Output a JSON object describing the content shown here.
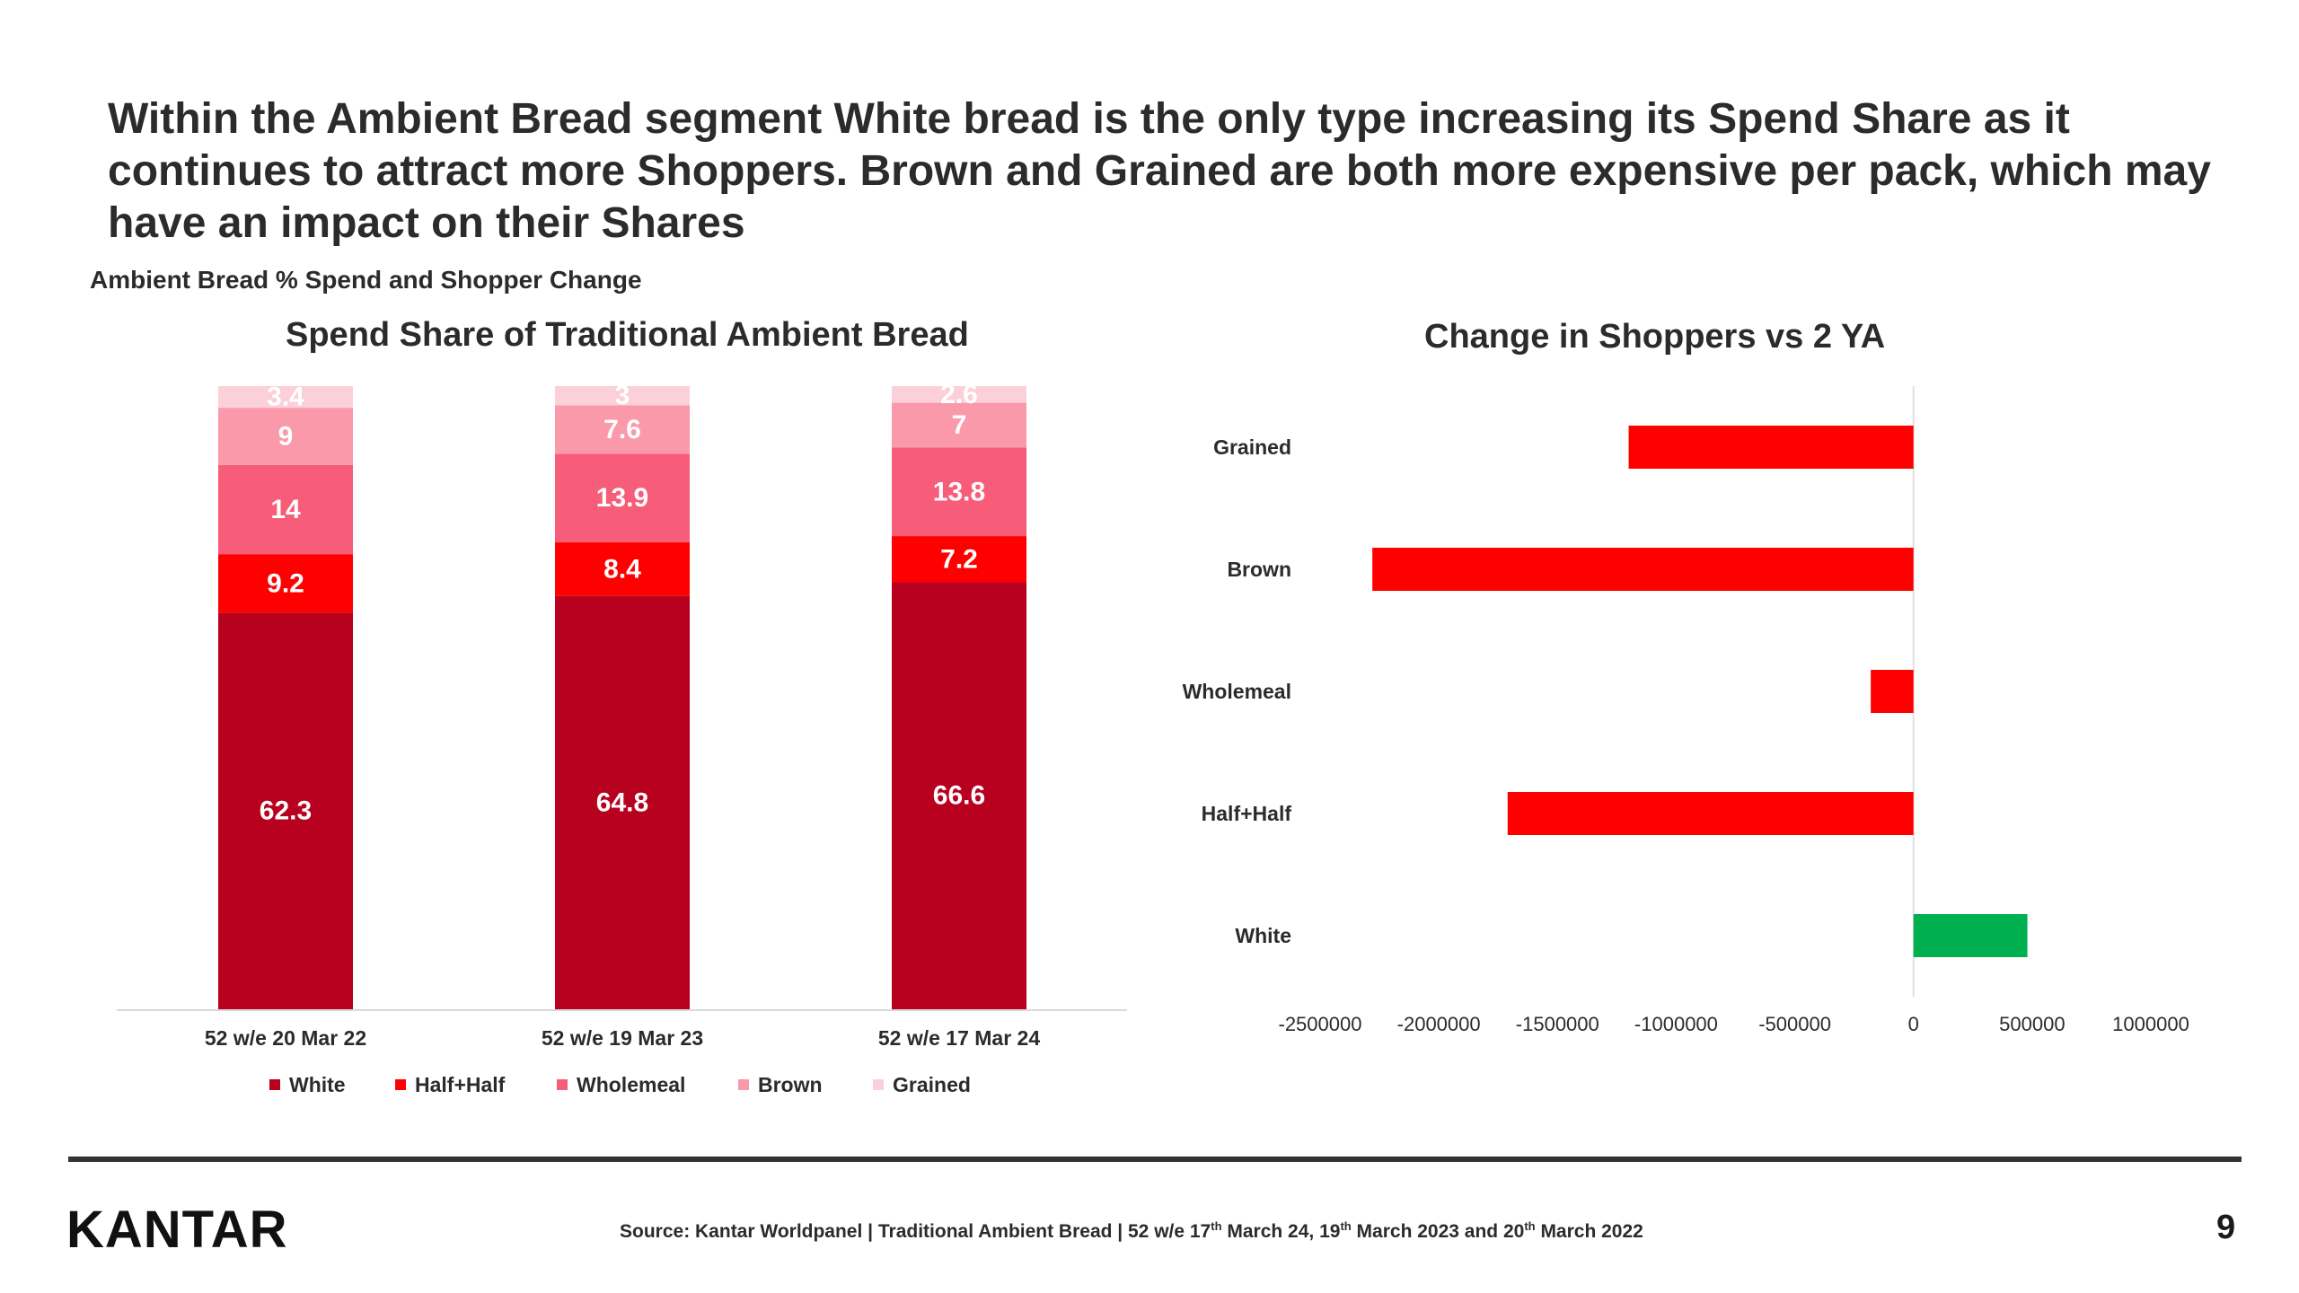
{
  "headline": "Within the Ambient Bread segment White bread is the only type increasing its Spend Share as it continues to attract more Shoppers. Brown and Grained are both more expensive per pack, which may have an impact on their Shares",
  "subtitle": "Ambient Bread % Spend and Shopper Change",
  "chart_data": [
    {
      "type": "bar",
      "stacked": true,
      "orientation": "vertical",
      "title": "Spend Share of Traditional Ambient Bread",
      "xlabel": "",
      "ylabel": "",
      "categories": [
        "52 w/e 20 Mar 22",
        "52 w/e 19 Mar 23",
        "52 w/e 17 Mar 24"
      ],
      "series": [
        {
          "name": "White",
          "values": [
            62.3,
            64.8,
            66.6
          ],
          "color": "#b8001f"
        },
        {
          "name": "Half+Half",
          "values": [
            9.2,
            8.4,
            7.2
          ],
          "color": "#ff0000"
        },
        {
          "name": "Wholemeal",
          "values": [
            14,
            13.9,
            13.8
          ],
          "color": "#f75c78"
        },
        {
          "name": "Brown",
          "values": [
            9,
            7.6,
            7
          ],
          "color": "#fa99aa"
        },
        {
          "name": "Grained",
          "values": [
            3.4,
            3,
            2.6
          ],
          "color": "#fcd0d8"
        }
      ],
      "data_labels": true,
      "legend": "bottom",
      "grid": false
    },
    {
      "type": "bar",
      "orientation": "horizontal",
      "title": "Change in Shoppers vs 2 YA",
      "xlabel": "",
      "ylabel": "",
      "categories": [
        "Grained",
        "Brown",
        "Wholemeal",
        "Half+Half",
        "White"
      ],
      "values": [
        -1200000,
        -2280000,
        -180000,
        -1710000,
        480000
      ],
      "xlim": [
        -2500000,
        1000000
      ],
      "xticks": [
        -2500000,
        -2000000,
        -1500000,
        -1000000,
        -500000,
        0,
        500000,
        1000000
      ],
      "xtick_labels": [
        "-2500000",
        "-2000000",
        "-1500000",
        "-1000000",
        "-500000",
        "0",
        "500000",
        "1000000"
      ],
      "negative_color": "#ff0000",
      "positive_color": "#00b050",
      "grid": false
    }
  ],
  "footer": {
    "logo": "KANTAR",
    "source_prefix": "Source: Kantar Worldpanel | Traditional Ambient Bread |  52 w/e 17",
    "sup1": "th",
    "source_mid1": " March 24, 19",
    "sup2": "th",
    "source_mid2": " March 2023 and 20",
    "sup3": "th",
    "source_suffix": " March 2022",
    "page_number": "9"
  }
}
